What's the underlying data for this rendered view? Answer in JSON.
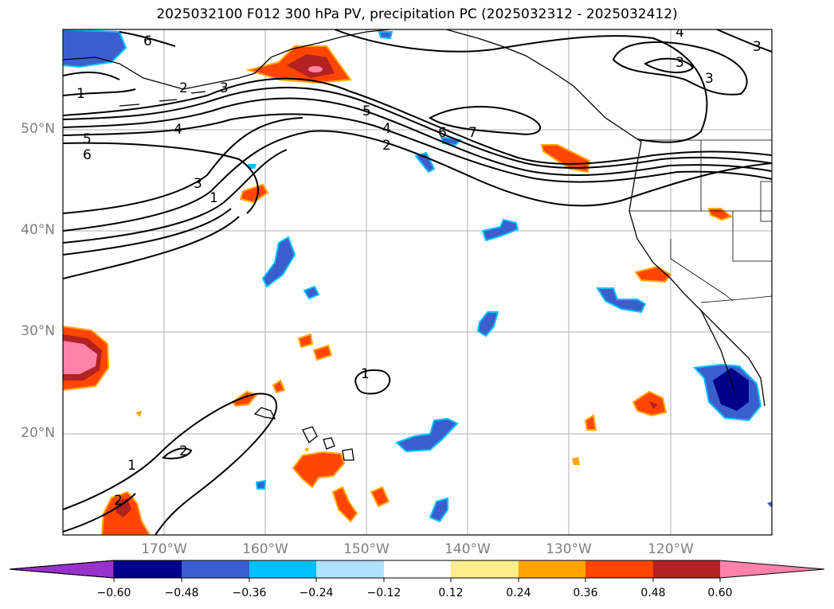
{
  "title": "2025032100 F012 300 hPa PV, precipitation PC (2025032312 - 2025032412)",
  "lat_labels": [
    "50°N",
    "40°N",
    "30°N",
    "20°N"
  ],
  "lon_labels": [
    "170°W",
    "160°W",
    "150°W",
    "140°W",
    "130°W",
    "120°W"
  ],
  "colorbar": {
    "ticks": [
      "−0.60",
      "−0.48",
      "−0.36",
      "−0.24",
      "−0.12",
      "0.12",
      "0.24",
      "0.36",
      "0.48",
      "0.60"
    ],
    "colors": [
      "#9932cc",
      "#00008b",
      "#3a5fcd",
      "#00bfff",
      "#b0e2ff",
      "#ffffff",
      "#ffec8b",
      "#ffa500",
      "#ff4500",
      "#b22222",
      "#ff82ab"
    ]
  },
  "contour_labels": [
    "6",
    "1",
    "2",
    "3",
    "4",
    "5",
    "6",
    "5",
    "4",
    "2",
    "6",
    "7",
    "3",
    "1",
    "4",
    "3",
    "3",
    "3",
    "1",
    "1",
    "2",
    "2"
  ]
}
